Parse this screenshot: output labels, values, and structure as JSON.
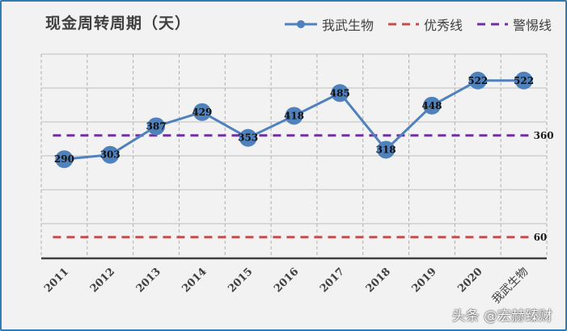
{
  "title": "现金周转周期（天）",
  "legend": [
    {
      "label": "我武生物",
      "color": "#4f81bd",
      "style": "line-marker"
    },
    {
      "label": "优秀线",
      "color": "#c0504d",
      "style": "dashed"
    },
    {
      "label": "警惕线",
      "color": "#7030a0",
      "style": "dashed"
    }
  ],
  "watermark": "头条 @宏赫臻财",
  "chart_data": {
    "type": "line",
    "title": "现金周转周期（天）",
    "categories": [
      "2011",
      "2012",
      "2013",
      "2014",
      "2015",
      "2016",
      "2017",
      "2018",
      "2019",
      "2020",
      "我武生物"
    ],
    "series": [
      {
        "name": "我武生物",
        "values": [
          290,
          303,
          387,
          429,
          353,
          418,
          485,
          318,
          448,
          522,
          522
        ],
        "color": "#4f81bd"
      },
      {
        "name": "优秀线",
        "values": [
          60,
          60,
          60,
          60,
          60,
          60,
          60,
          60,
          60,
          60,
          60
        ],
        "color": "#c0504d",
        "end_label": "60"
      },
      {
        "name": "警惕线",
        "values": [
          360,
          360,
          360,
          360,
          360,
          360,
          360,
          360,
          360,
          360,
          360
        ],
        "color": "#7030a0",
        "end_label": "360"
      }
    ],
    "xlabel": "",
    "ylabel": "",
    "ylim": [
      0,
      600
    ],
    "y_axis_labels_visible": false,
    "grid": true,
    "legend_position": "top-right"
  }
}
